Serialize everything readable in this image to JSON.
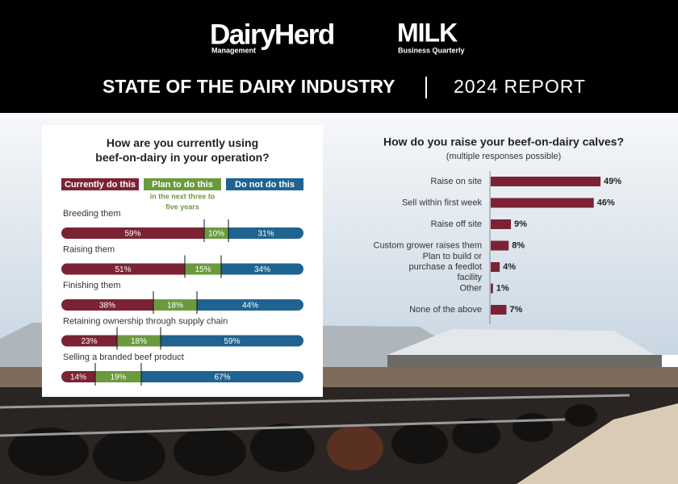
{
  "header": {
    "logo1": "DairyHerd",
    "logo1_sub": "Management",
    "logo2": "MILK",
    "logo2_sub": "Business Quarterly",
    "title": "STATE OF THE DAIRY INDUSTRY",
    "report": "2024 REPORT"
  },
  "chart_data": [
    {
      "type": "bar",
      "stacked": true,
      "orientation": "horizontal",
      "title": "How are you currently using beef-on-dairy in your operation?",
      "categories": [
        "Breeding them",
        "Raising them",
        "Finishing them",
        "Retaining ownership through supply chain",
        "Selling a branded beef product"
      ],
      "series": [
        {
          "name": "Currently do this",
          "color": "#7b2335",
          "values": [
            59,
            51,
            38,
            23,
            14
          ],
          "value_labels": [
            "59%",
            "51%",
            "38%",
            "23%",
            "14%"
          ]
        },
        {
          "name": "Plan to do this",
          "note": "in the next three to five years",
          "color": "#6b9a3e",
          "values": [
            10,
            15,
            18,
            18,
            19
          ],
          "value_labels": [
            "10%",
            "15%",
            "18%",
            "18%",
            "19%"
          ]
        },
        {
          "name": "Do not do this",
          "color": "#1f6390",
          "values": [
            31,
            34,
            44,
            59,
            67
          ],
          "value_labels": [
            "31%",
            "34%",
            "44%",
            "59%",
            "67%"
          ]
        }
      ]
    },
    {
      "type": "bar",
      "orientation": "horizontal",
      "title": "How do you raise your beef-on-dairy calves?",
      "subtitle": "(multiple responses possible)",
      "categories": [
        "Raise on site",
        "Sell within first week",
        "Raise off site",
        "Custom grower raises them",
        "Plan to build or purchase a feedlot facility",
        "Other",
        "None of the above"
      ],
      "values": [
        49,
        46,
        9,
        8,
        4,
        1,
        7
      ],
      "value_labels": [
        "49%",
        "46%",
        "9%",
        "8%",
        "4%",
        "1%",
        "7%"
      ],
      "color": "#7b2335"
    }
  ]
}
